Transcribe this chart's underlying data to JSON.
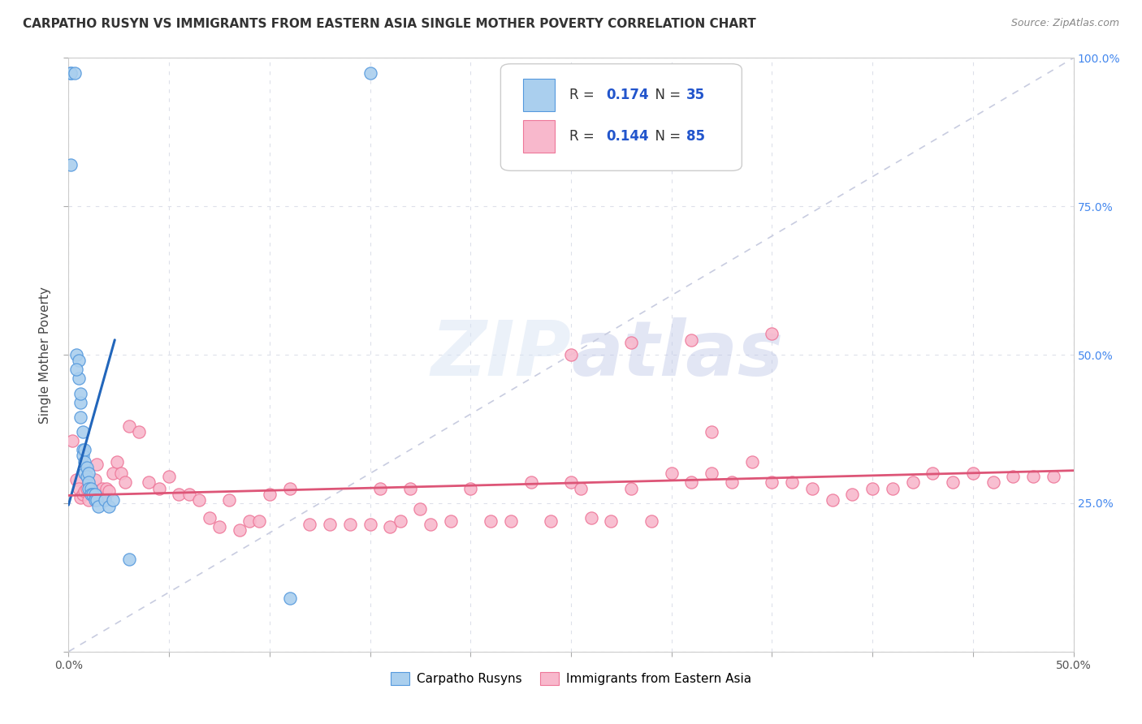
{
  "title": "CARPATHO RUSYN VS IMMIGRANTS FROM EASTERN ASIA SINGLE MOTHER POVERTY CORRELATION CHART",
  "source": "Source: ZipAtlas.com",
  "ylabel": "Single Mother Poverty",
  "xlim": [
    0,
    0.5
  ],
  "ylim": [
    0,
    1.0
  ],
  "blue_color": "#aacfee",
  "blue_edge": "#5599dd",
  "blue_line_color": "#2266bb",
  "pink_color": "#f8b8cc",
  "pink_edge": "#ee7799",
  "pink_line_color": "#dd5577",
  "legend_r_blue": "0.174",
  "legend_n_blue": "35",
  "legend_r_pink": "0.144",
  "legend_n_pink": "85",
  "legend_label_blue": "Carpatho Rusyns",
  "legend_label_pink": "Immigrants from Eastern Asia",
  "watermark": "ZIPatlas",
  "bg_color": "#ffffff",
  "grid_color": "#dde0ea",
  "title_fontsize": 11,
  "axis_label_fontsize": 11,
  "tick_fontsize": 10,
  "right_tick_color": "#4488ee",
  "blue_x": [
    0.001,
    0.001,
    0.003,
    0.001,
    0.004,
    0.005,
    0.005,
    0.006,
    0.006,
    0.006,
    0.007,
    0.007,
    0.007,
    0.008,
    0.008,
    0.008,
    0.009,
    0.009,
    0.01,
    0.01,
    0.01,
    0.011,
    0.011,
    0.012,
    0.013,
    0.013,
    0.014,
    0.015,
    0.018,
    0.02,
    0.022,
    0.03,
    0.11,
    0.15,
    0.004
  ],
  "blue_y": [
    0.975,
    0.975,
    0.975,
    0.82,
    0.5,
    0.49,
    0.46,
    0.42,
    0.435,
    0.395,
    0.37,
    0.34,
    0.33,
    0.34,
    0.32,
    0.3,
    0.31,
    0.295,
    0.3,
    0.285,
    0.275,
    0.275,
    0.265,
    0.265,
    0.265,
    0.255,
    0.255,
    0.245,
    0.255,
    0.245,
    0.255,
    0.155,
    0.09,
    0.975,
    0.475
  ],
  "pink_x": [
    0.002,
    0.004,
    0.005,
    0.006,
    0.007,
    0.008,
    0.009,
    0.01,
    0.011,
    0.012,
    0.013,
    0.014,
    0.015,
    0.016,
    0.017,
    0.018,
    0.019,
    0.02,
    0.022,
    0.024,
    0.026,
    0.028,
    0.03,
    0.035,
    0.04,
    0.045,
    0.05,
    0.055,
    0.06,
    0.065,
    0.07,
    0.075,
    0.08,
    0.085,
    0.09,
    0.095,
    0.1,
    0.11,
    0.12,
    0.13,
    0.14,
    0.15,
    0.155,
    0.16,
    0.165,
    0.17,
    0.175,
    0.18,
    0.19,
    0.2,
    0.21,
    0.22,
    0.23,
    0.24,
    0.25,
    0.255,
    0.26,
    0.27,
    0.28,
    0.29,
    0.3,
    0.31,
    0.32,
    0.33,
    0.34,
    0.35,
    0.36,
    0.37,
    0.38,
    0.39,
    0.4,
    0.41,
    0.42,
    0.43,
    0.44,
    0.45,
    0.46,
    0.47,
    0.48,
    0.49,
    0.28,
    0.31,
    0.25,
    0.35,
    0.32
  ],
  "pink_y": [
    0.355,
    0.29,
    0.275,
    0.26,
    0.265,
    0.27,
    0.275,
    0.255,
    0.27,
    0.265,
    0.29,
    0.315,
    0.27,
    0.265,
    0.275,
    0.26,
    0.275,
    0.27,
    0.3,
    0.32,
    0.3,
    0.285,
    0.38,
    0.37,
    0.285,
    0.275,
    0.295,
    0.265,
    0.265,
    0.255,
    0.225,
    0.21,
    0.255,
    0.205,
    0.22,
    0.22,
    0.265,
    0.275,
    0.215,
    0.215,
    0.215,
    0.215,
    0.275,
    0.21,
    0.22,
    0.275,
    0.24,
    0.215,
    0.22,
    0.275,
    0.22,
    0.22,
    0.285,
    0.22,
    0.285,
    0.275,
    0.225,
    0.22,
    0.275,
    0.22,
    0.3,
    0.285,
    0.3,
    0.285,
    0.32,
    0.285,
    0.285,
    0.275,
    0.255,
    0.265,
    0.275,
    0.275,
    0.285,
    0.3,
    0.285,
    0.3,
    0.285,
    0.295,
    0.295,
    0.295,
    0.52,
    0.525,
    0.5,
    0.535,
    0.37
  ],
  "blue_line_x": [
    0.0,
    0.023
  ],
  "blue_line_y": [
    0.247,
    0.525
  ],
  "pink_line_x": [
    0.0,
    0.5
  ],
  "pink_line_y": [
    0.263,
    0.305
  ]
}
